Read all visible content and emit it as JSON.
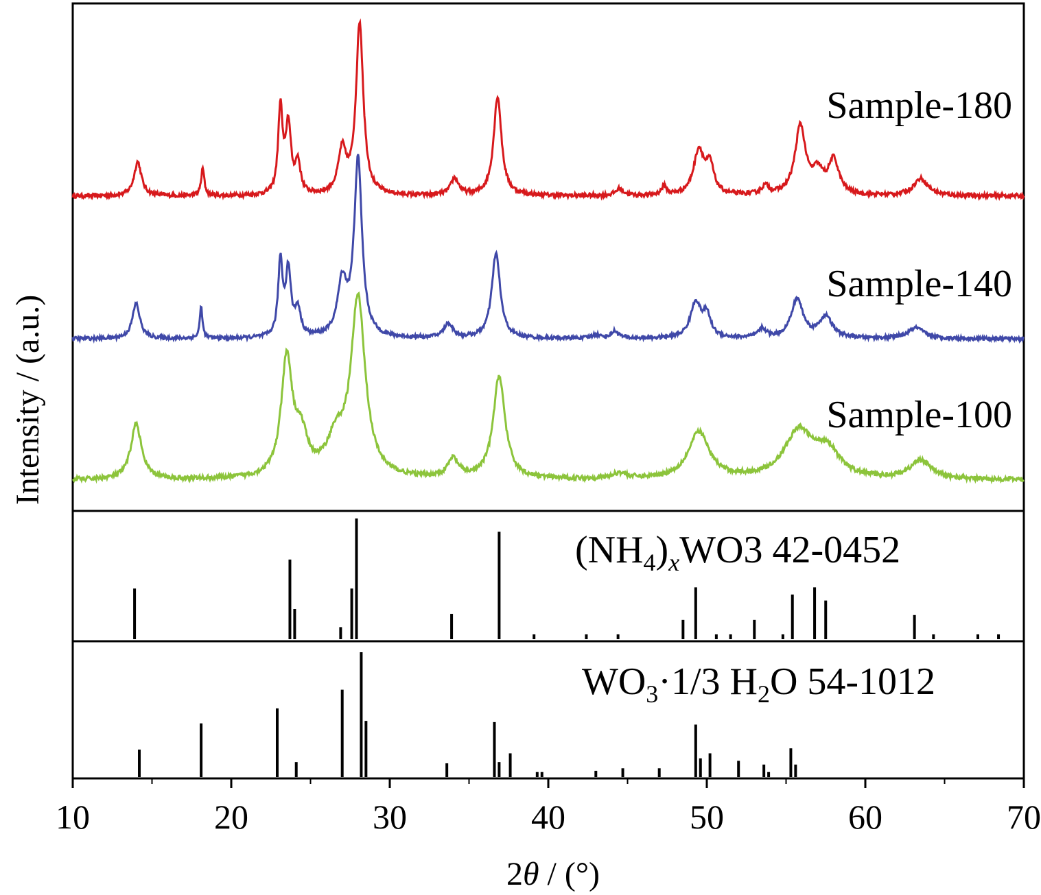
{
  "chart_data": {
    "type": "line",
    "xlabel_parts": [
      "2",
      "θ",
      " / (°)"
    ],
    "ylabel": "Intensity / (a.u.)",
    "xlim": [
      10,
      70
    ],
    "xticks": [
      10,
      20,
      30,
      40,
      50,
      60,
      70
    ],
    "xtick_labels": [
      "10",
      "20",
      "30",
      "40",
      "50",
      "60",
      "70"
    ],
    "grid": false,
    "series": [
      {
        "name": "Sample-180",
        "color": "#d7191c",
        "baseline": 0.1,
        "noise": 0.012,
        "peaks": [
          [
            14.1,
            0.2,
            0.28
          ],
          [
            18.2,
            0.16,
            0.12
          ],
          [
            23.1,
            0.5,
            0.17
          ],
          [
            23.6,
            0.4,
            0.2
          ],
          [
            24.2,
            0.18,
            0.2
          ],
          [
            27.0,
            0.25,
            0.3
          ],
          [
            28.1,
            1.0,
            0.28
          ],
          [
            34.1,
            0.1,
            0.3
          ],
          [
            36.8,
            0.58,
            0.3
          ],
          [
            44.5,
            0.04,
            0.3
          ],
          [
            47.3,
            0.05,
            0.2
          ],
          [
            49.5,
            0.26,
            0.4
          ],
          [
            50.2,
            0.16,
            0.3
          ],
          [
            53.7,
            0.05,
            0.3
          ],
          [
            55.9,
            0.4,
            0.4
          ],
          [
            57.0,
            0.12,
            0.4
          ],
          [
            58.0,
            0.2,
            0.4
          ],
          [
            63.5,
            0.1,
            0.55
          ]
        ]
      },
      {
        "name": "Sample-140",
        "color": "#3f48a8",
        "baseline": 0.1,
        "noise": 0.01,
        "peaks": [
          [
            14.0,
            0.2,
            0.28
          ],
          [
            18.1,
            0.18,
            0.1
          ],
          [
            23.1,
            0.42,
            0.17
          ],
          [
            23.6,
            0.37,
            0.2
          ],
          [
            24.2,
            0.15,
            0.22
          ],
          [
            27.0,
            0.3,
            0.35
          ],
          [
            28.0,
            1.0,
            0.3
          ],
          [
            33.7,
            0.08,
            0.35
          ],
          [
            36.7,
            0.48,
            0.32
          ],
          [
            43.0,
            0.02,
            0.3
          ],
          [
            44.2,
            0.04,
            0.3
          ],
          [
            49.3,
            0.2,
            0.4
          ],
          [
            50.0,
            0.12,
            0.3
          ],
          [
            53.5,
            0.05,
            0.3
          ],
          [
            55.7,
            0.22,
            0.45
          ],
          [
            57.5,
            0.12,
            0.5
          ],
          [
            63.2,
            0.06,
            0.6
          ]
        ]
      },
      {
        "name": "Sample-100",
        "color": "#8cc43b",
        "baseline": 0.1,
        "noise": 0.012,
        "peaks": [
          [
            14.0,
            0.3,
            0.4
          ],
          [
            23.5,
            0.62,
            0.42
          ],
          [
            24.4,
            0.2,
            0.5
          ],
          [
            26.6,
            0.18,
            0.7
          ],
          [
            28.0,
            0.95,
            0.55
          ],
          [
            34.0,
            0.1,
            0.4
          ],
          [
            36.9,
            0.55,
            0.45
          ],
          [
            44.5,
            0.03,
            0.5
          ],
          [
            49.5,
            0.25,
            0.8
          ],
          [
            55.8,
            0.25,
            1.1
          ],
          [
            57.6,
            0.14,
            0.9
          ],
          [
            63.5,
            0.1,
            0.8
          ]
        ]
      }
    ],
    "references": [
      {
        "label_parts": [
          "(NH",
          "4",
          ")",
          "x",
          "WO",
          "3",
          " 42-0452"
        ],
        "color": "#000000",
        "sticks": [
          [
            13.9,
            0.42
          ],
          [
            23.7,
            0.66
          ],
          [
            24.0,
            0.25
          ],
          [
            26.9,
            0.1
          ],
          [
            27.6,
            0.42
          ],
          [
            27.9,
            1.0
          ],
          [
            33.9,
            0.21
          ],
          [
            36.9,
            0.89
          ],
          [
            39.1,
            0.04
          ],
          [
            42.4,
            0.04
          ],
          [
            44.4,
            0.04
          ],
          [
            48.5,
            0.16
          ],
          [
            49.3,
            0.43
          ],
          [
            50.6,
            0.04
          ],
          [
            51.5,
            0.04
          ],
          [
            53.0,
            0.16
          ],
          [
            54.8,
            0.04
          ],
          [
            55.4,
            0.37
          ],
          [
            56.8,
            0.43
          ],
          [
            57.5,
            0.32
          ],
          [
            63.1,
            0.2
          ],
          [
            64.3,
            0.04
          ],
          [
            67.1,
            0.04
          ],
          [
            68.4,
            0.04
          ]
        ]
      },
      {
        "label_parts": [
          "WO",
          "3",
          "·1/3 H",
          "2",
          "O 54-1012"
        ],
        "color": "#000000",
        "sticks": [
          [
            14.2,
            0.22
          ],
          [
            18.1,
            0.43
          ],
          [
            22.9,
            0.55
          ],
          [
            24.1,
            0.12
          ],
          [
            27.0,
            0.7
          ],
          [
            28.2,
            1.0
          ],
          [
            28.5,
            0.45
          ],
          [
            33.6,
            0.11
          ],
          [
            36.6,
            0.44
          ],
          [
            36.9,
            0.12
          ],
          [
            37.6,
            0.19
          ],
          [
            39.3,
            0.04
          ],
          [
            39.6,
            0.04
          ],
          [
            43.0,
            0.05
          ],
          [
            44.7,
            0.07
          ],
          [
            47.0,
            0.07
          ],
          [
            49.3,
            0.42
          ],
          [
            49.6,
            0.15
          ],
          [
            50.2,
            0.19
          ],
          [
            52.0,
            0.13
          ],
          [
            53.6,
            0.1
          ],
          [
            53.9,
            0.04
          ],
          [
            55.3,
            0.23
          ],
          [
            55.6,
            0.1
          ]
        ]
      }
    ]
  }
}
